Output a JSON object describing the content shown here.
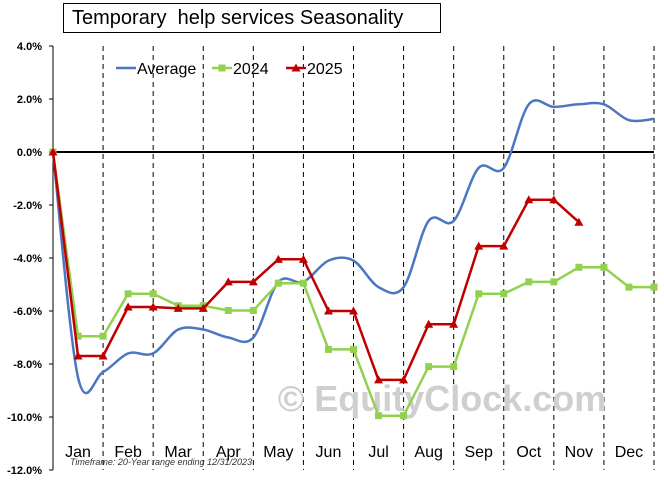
{
  "chart_data": {
    "type": "line",
    "title": "Temporary  help services Seasonality",
    "footnote": "Timeframe: 20-Year range ending 12/31/2023",
    "watermark": "© EquityClock.com",
    "xlabel": "",
    "ylabel": "",
    "categories": [
      "Jan",
      "Feb",
      "Mar",
      "Apr",
      "May",
      "Jun",
      "Jul",
      "Aug",
      "Sep",
      "Oct",
      "Nov",
      "Dec"
    ],
    "ylim": [
      -12,
      4
    ],
    "yticks": [
      4,
      2,
      0,
      -2,
      -4,
      -6,
      -8,
      -10,
      -12
    ],
    "ytick_labels": [
      "4.0%",
      "2.0%",
      "0.0%",
      "-2.0%",
      "-4.0%",
      "-6.0%",
      "-8.0%",
      "-10.0%",
      "-12.0%"
    ],
    "grid": "vertical",
    "legend_position": "top-left",
    "series": [
      {
        "name": "Average",
        "color": "#4a76c2",
        "marker": "none",
        "smooth": true,
        "x": [
          0,
          0.5,
          1,
          1.5,
          2,
          2.5,
          3,
          3.5,
          4,
          4.5,
          5,
          5.5,
          6,
          6.5,
          7,
          7.5,
          8,
          8.5,
          9,
          9.5,
          10,
          10.5,
          11,
          11.5,
          12
        ],
        "y": [
          0,
          -8.5,
          -8.3,
          -7.6,
          -7.6,
          -6.7,
          -6.7,
          -7.0,
          -7.0,
          -4.9,
          -4.9,
          -4.1,
          -4.1,
          -5.1,
          -5.1,
          -2.6,
          -2.6,
          -0.6,
          -0.6,
          1.8,
          1.7,
          1.8,
          1.8,
          1.2,
          1.25
        ]
      },
      {
        "name": "2024",
        "color": "#92d050",
        "marker": "square",
        "x": [
          0,
          0.5,
          1,
          1.5,
          2,
          2.5,
          3,
          3.5,
          4,
          4.5,
          5,
          5.5,
          6,
          6.5,
          7,
          7.5,
          8,
          8.5,
          9,
          9.5,
          10,
          10.5,
          11,
          11.5,
          12
        ],
        "y": [
          0,
          -6.95,
          -6.95,
          -5.35,
          -5.35,
          -5.8,
          -5.8,
          -5.98,
          -5.98,
          -4.95,
          -4.95,
          -7.45,
          -7.45,
          -9.95,
          -9.95,
          -8.1,
          -8.1,
          -5.35,
          -5.35,
          -4.9,
          -4.9,
          -4.35,
          -4.35,
          -5.1,
          -5.1
        ]
      },
      {
        "name": "2025",
        "color": "#c00000",
        "marker": "triangle",
        "x": [
          0,
          0.5,
          1,
          1.5,
          2,
          2.5,
          3,
          3.5,
          4,
          4.5,
          5,
          5.5,
          6,
          6.5,
          7,
          7.5,
          8,
          8.5,
          9,
          9.5,
          10,
          10.5
        ],
        "y": [
          0,
          -7.7,
          -7.7,
          -5.85,
          -5.85,
          -5.9,
          -5.9,
          -4.9,
          -4.9,
          -4.05,
          -4.05,
          -6.0,
          -6.0,
          -8.6,
          -8.6,
          -6.5,
          -6.5,
          -3.55,
          -3.55,
          -1.8,
          -1.8,
          -2.65
        ]
      }
    ]
  }
}
